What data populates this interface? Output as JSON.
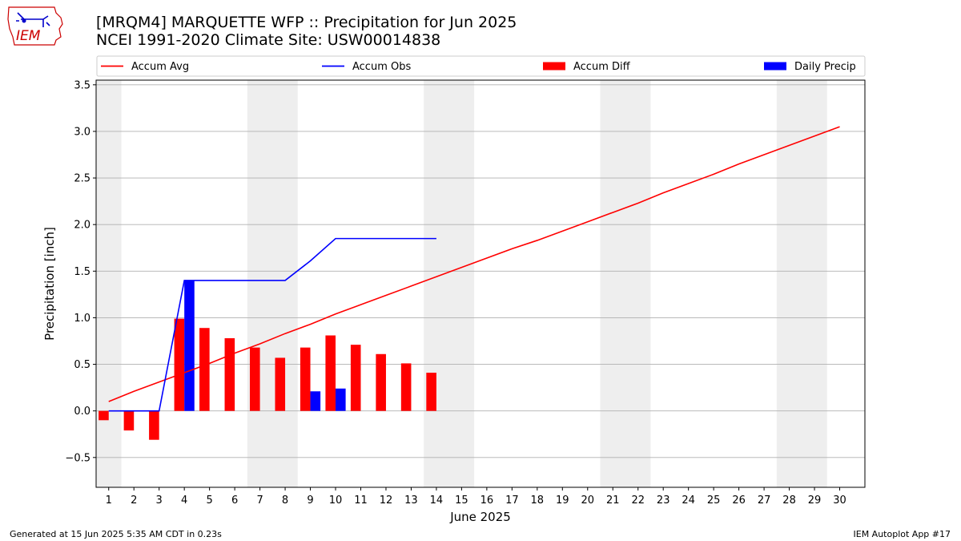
{
  "header": {
    "title_line1": "[MRQM4] MARQUETTE WFP :: Precipitation for Jun 2025",
    "title_line2": "NCEI 1991-2020 Climate Site: USW00014838"
  },
  "logo": {
    "text": "IEM",
    "icon": "iem-iowa-logo-icon",
    "color": "#cc0000"
  },
  "footer": {
    "left": "Generated at 15 Jun 2025 5:35 AM CDT in 0.23s",
    "right": "IEM Autoplot App #17"
  },
  "chart_data": {
    "type": "bar",
    "xlabel": "June 2025",
    "ylabel": "Precipitation [inch]",
    "xlim": [
      0.5,
      31
    ],
    "ylim": [
      -0.82,
      3.55
    ],
    "yticks": [
      -0.5,
      0.0,
      0.5,
      1.0,
      1.5,
      2.0,
      2.5,
      3.0,
      3.5
    ],
    "ytick_labels": [
      "−0.5",
      "0.0",
      "0.5",
      "1.0",
      "1.5",
      "2.0",
      "2.5",
      "3.0",
      "3.5"
    ],
    "x": [
      1,
      2,
      3,
      4,
      5,
      6,
      7,
      8,
      9,
      10,
      11,
      12,
      13,
      14,
      15,
      16,
      17,
      18,
      19,
      20,
      21,
      22,
      23,
      24,
      25,
      26,
      27,
      28,
      29,
      30
    ],
    "xtick_labels": [
      "1",
      "2",
      "3",
      "4",
      "5",
      "6",
      "7",
      "8",
      "9",
      "10",
      "11",
      "12",
      "13",
      "14",
      "15",
      "16",
      "17",
      "18",
      "19",
      "20",
      "21",
      "22",
      "23",
      "24",
      "25",
      "26",
      "27",
      "28",
      "29",
      "30"
    ],
    "grid": "horizontal",
    "legend_position": "top",
    "weekend_spans": [
      [
        0.5,
        1.5
      ],
      [
        6.5,
        8.5
      ],
      [
        13.5,
        15.5
      ],
      [
        20.5,
        22.5
      ],
      [
        27.5,
        29.5
      ]
    ],
    "weekend_color": "#eeeeee",
    "series": [
      {
        "name": "Accum Avg",
        "kind": "line",
        "color": "#ff0000",
        "x": [
          1,
          2,
          3,
          4,
          5,
          6,
          7,
          8,
          9,
          10,
          11,
          12,
          13,
          14,
          15,
          16,
          17,
          18,
          19,
          20,
          21,
          22,
          23,
          24,
          25,
          26,
          27,
          28,
          29,
          30
        ],
        "values": [
          0.1,
          0.21,
          0.31,
          0.41,
          0.51,
          0.62,
          0.72,
          0.83,
          0.93,
          1.04,
          1.14,
          1.24,
          1.34,
          1.44,
          1.54,
          1.64,
          1.74,
          1.83,
          1.93,
          2.03,
          2.13,
          2.23,
          2.34,
          2.44,
          2.54,
          2.65,
          2.75,
          2.85,
          2.95,
          3.05
        ]
      },
      {
        "name": "Accum Obs",
        "kind": "line",
        "color": "#0000ff",
        "x": [
          1,
          2,
          3,
          4,
          5,
          6,
          7,
          8,
          9,
          10,
          11,
          12,
          13,
          14
        ],
        "values": [
          0.0,
          0.0,
          0.0,
          1.4,
          1.4,
          1.4,
          1.4,
          1.4,
          1.61,
          1.85,
          1.85,
          1.85,
          1.85,
          1.85
        ]
      },
      {
        "name": "Accum Diff",
        "kind": "bar",
        "color": "#ff0000",
        "x": [
          1,
          2,
          3,
          4,
          5,
          6,
          7,
          8,
          9,
          10,
          11,
          12,
          13,
          14
        ],
        "values": [
          -0.1,
          -0.21,
          -0.31,
          0.99,
          0.89,
          0.78,
          0.68,
          0.57,
          0.68,
          0.81,
          0.71,
          0.61,
          0.51,
          0.41
        ]
      },
      {
        "name": "Daily Precip",
        "kind": "bar",
        "color": "#0000ff",
        "x": [
          1,
          2,
          3,
          4,
          5,
          6,
          7,
          8,
          9,
          10,
          11,
          12,
          13,
          14
        ],
        "values": [
          0,
          0,
          0,
          1.4,
          0,
          0,
          0,
          0,
          0.21,
          0.24,
          0,
          0,
          0,
          0
        ]
      }
    ]
  }
}
